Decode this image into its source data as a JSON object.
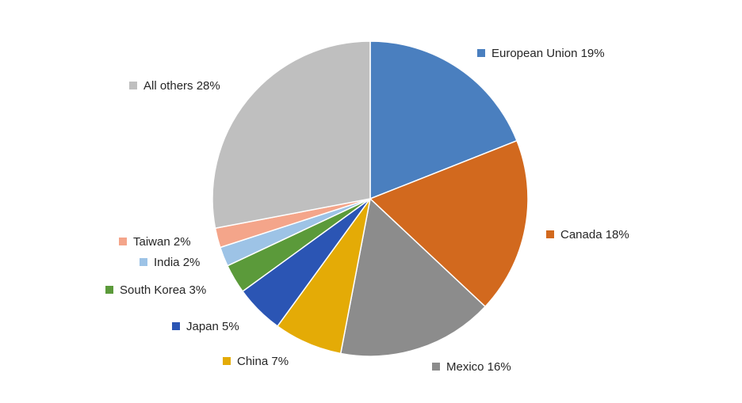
{
  "chart_data": {
    "type": "pie",
    "title": "",
    "slices": [
      {
        "label": "European Union",
        "value": 19,
        "color": "#4a7fbf"
      },
      {
        "label": "Canada",
        "value": 18,
        "color": "#d2691e"
      },
      {
        "label": "Mexico",
        "value": 16,
        "color": "#8c8c8c"
      },
      {
        "label": "China",
        "value": 7,
        "color": "#e4ab06"
      },
      {
        "label": "Japan",
        "value": 5,
        "color": "#2b55b4"
      },
      {
        "label": "South Korea",
        "value": 3,
        "color": "#5b9a3a"
      },
      {
        "label": "India",
        "value": 2,
        "color": "#9dc3e6"
      },
      {
        "label": "Taiwan",
        "value": 2,
        "color": "#f4a58a"
      },
      {
        "label": "All others",
        "value": 28,
        "color": "#bfbfbf"
      }
    ],
    "display_labels": [
      "European Union 19%",
      "Canada 18%",
      "Mexico 16%",
      "China 7%",
      "Japan 5%",
      "South Korea 3%",
      "India 2%",
      "Taiwan 2%",
      "All others 28%"
    ],
    "start_angle": "12 o'clock",
    "direction": "clockwise",
    "legend": "data labels beside slices with colored markers",
    "slice_border_color": "#ffffff"
  }
}
